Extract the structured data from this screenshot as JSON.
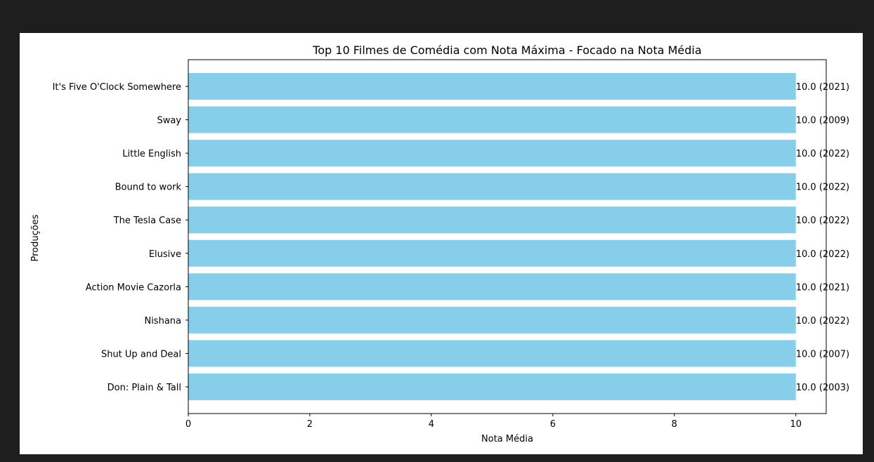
{
  "colors": {
    "page_background": "#1e1e1e",
    "figure_background": "#ffffff",
    "bar": "#87ceeb",
    "axis": "#000000"
  },
  "chart_data": {
    "type": "bar",
    "orientation": "horizontal",
    "title": "Top 10 Filmes de Comédia com Nota Máxima - Focado na Nota Média",
    "xlabel": "Nota Média",
    "ylabel": "Produções",
    "xlim": [
      0,
      10.5
    ],
    "x_ticks": [
      0,
      2,
      4,
      6,
      8,
      10
    ],
    "grid": false,
    "legend": "none",
    "categories": [
      "It's Five O'Clock Somewhere",
      "Sway",
      "Little English",
      "Bound to work",
      "The Tesla Case",
      "Elusive",
      "Action Movie Cazorla",
      "Nishana",
      "Shut Up and Deal",
      "Don: Plain & Tall"
    ],
    "values": [
      10.0,
      10.0,
      10.0,
      10.0,
      10.0,
      10.0,
      10.0,
      10.0,
      10.0,
      10.0
    ],
    "data_labels": [
      "10.0 (2021)",
      "10.0 (2009)",
      "10.0 (2022)",
      "10.0 (2022)",
      "10.0 (2022)",
      "10.0 (2022)",
      "10.0 (2021)",
      "10.0 (2022)",
      "10.0 (2007)",
      "10.0 (2003)"
    ]
  }
}
